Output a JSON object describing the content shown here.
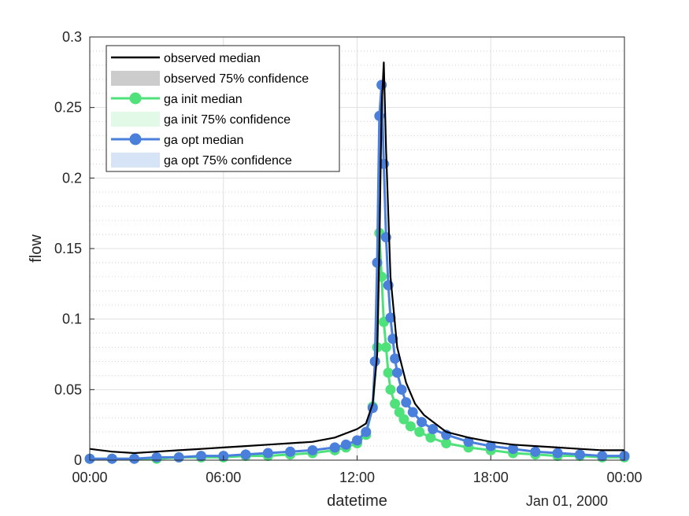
{
  "chart_data": {
    "type": "line",
    "xlabel": "datetime",
    "ylabel": "flow",
    "date_annotation": "Jan 01, 2000",
    "x_range_hours": [
      0,
      24
    ],
    "x_tick_labels": [
      "00:00",
      "06:00",
      "12:00",
      "18:00",
      "00:00"
    ],
    "ylim": [
      0,
      0.3
    ],
    "y_tick_labels": [
      "0",
      "0.05",
      "0.1",
      "0.15",
      "0.2",
      "0.25",
      "0.3"
    ],
    "grid": true,
    "minor_grid_y": true,
    "legend_location": "top-left",
    "series": [
      {
        "name": "observed median",
        "color": "#000000",
        "marker": "none",
        "x_hours": [
          0,
          1,
          2,
          3,
          4,
          5,
          6,
          7,
          8,
          9,
          10,
          11,
          11.5,
          12,
          12.4,
          12.7,
          12.9,
          13.0,
          13.1,
          13.2,
          13.3,
          13.5,
          13.8,
          14.2,
          14.6,
          15,
          16,
          17,
          18,
          19,
          20,
          21,
          22,
          23,
          24
        ],
        "values": [
          0.008,
          0.006,
          0.005,
          0.006,
          0.007,
          0.008,
          0.009,
          0.01,
          0.011,
          0.012,
          0.013,
          0.016,
          0.019,
          0.022,
          0.026,
          0.04,
          0.075,
          0.15,
          0.25,
          0.282,
          0.22,
          0.13,
          0.08,
          0.055,
          0.04,
          0.032,
          0.02,
          0.016,
          0.013,
          0.011,
          0.01,
          0.009,
          0.008,
          0.007,
          0.007
        ]
      },
      {
        "name": "observed 75% confidence",
        "color": "#cccccc",
        "type": "band"
      },
      {
        "name": "ga init median",
        "color": "#4fe27a",
        "marker": "circle",
        "x_hours": [
          0,
          1,
          2,
          3,
          4,
          5,
          6,
          7,
          8,
          9,
          10,
          11,
          11.5,
          12,
          12.4,
          12.7,
          12.9,
          13.0,
          13.1,
          13.2,
          13.3,
          13.4,
          13.5,
          13.7,
          13.9,
          14.1,
          14.4,
          14.8,
          15.3,
          16,
          17,
          18,
          19,
          20,
          21,
          22,
          23,
          24
        ],
        "values": [
          0.001,
          0.001,
          0.001,
          0.001,
          0.002,
          0.002,
          0.002,
          0.003,
          0.003,
          0.004,
          0.005,
          0.007,
          0.009,
          0.012,
          0.018,
          0.038,
          0.08,
          0.161,
          0.13,
          0.098,
          0.08,
          0.062,
          0.05,
          0.04,
          0.034,
          0.029,
          0.024,
          0.02,
          0.016,
          0.012,
          0.009,
          0.007,
          0.005,
          0.004,
          0.003,
          0.003,
          0.002,
          0.002
        ]
      },
      {
        "name": "ga init 75% confidence",
        "color": "#e3f9e8",
        "type": "band"
      },
      {
        "name": "ga opt median",
        "color": "#4a7fdc",
        "marker": "circle",
        "x_hours": [
          0,
          1,
          2,
          3,
          4,
          5,
          6,
          7,
          8,
          9,
          10,
          11,
          11.5,
          12,
          12.4,
          12.7,
          12.8,
          12.9,
          13.0,
          13.1,
          13.2,
          13.3,
          13.4,
          13.5,
          13.6,
          13.7,
          13.8,
          14.0,
          14.2,
          14.5,
          14.9,
          15.4,
          16,
          17,
          18,
          19,
          20,
          21,
          22,
          23,
          24
        ],
        "values": [
          0.001,
          0.001,
          0.001,
          0.002,
          0.002,
          0.003,
          0.003,
          0.004,
          0.005,
          0.006,
          0.007,
          0.009,
          0.011,
          0.014,
          0.02,
          0.037,
          0.07,
          0.14,
          0.244,
          0.266,
          0.21,
          0.158,
          0.124,
          0.101,
          0.086,
          0.072,
          0.062,
          0.05,
          0.041,
          0.034,
          0.027,
          0.022,
          0.018,
          0.013,
          0.01,
          0.008,
          0.006,
          0.005,
          0.004,
          0.003,
          0.003
        ]
      },
      {
        "name": "ga opt 75% confidence",
        "color": "#d7e3f7",
        "type": "band"
      }
    ]
  }
}
